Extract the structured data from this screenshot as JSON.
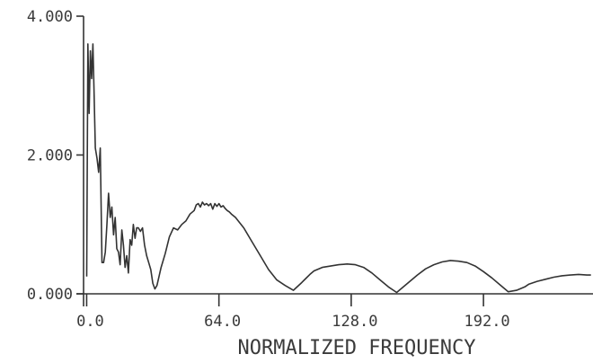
{
  "chart_data": {
    "type": "line",
    "title": "",
    "xlabel": "NORMALIZED FREQUENCY",
    "ylabel": "",
    "xlim": [
      -1.5,
      245
    ],
    "ylim": [
      0,
      4
    ],
    "x_ticks": [
      0,
      64,
      128,
      192
    ],
    "x_tick_labels": [
      "0.0",
      "64.0",
      "128.0",
      "192.0"
    ],
    "y_ticks": [
      0,
      2,
      4
    ],
    "y_tick_labels": [
      "0.000",
      "2.000",
      "4.000"
    ],
    "grid": false,
    "legend": "none",
    "series": [
      {
        "x": [
          0,
          0.6,
          1.2,
          1.8,
          2.4,
          3.0,
          3.6,
          4.2,
          5.0,
          5.8,
          6.6,
          7.4,
          8.2,
          9.0,
          9.8,
          10.6,
          11.4,
          12.2,
          13.0,
          13.8,
          14.6,
          15.4,
          16.2,
          17.0,
          17.8,
          18.6,
          19.4,
          20.2,
          21.0,
          21.8,
          22.6,
          23.4,
          24.2,
          25.0,
          26.0,
          27.0,
          28.0,
          29.0,
          30.0,
          31.0,
          32.0,
          33.0,
          34.0,
          35.0,
          36.0,
          38.0,
          40.0,
          42.0,
          44.0,
          46.0,
          48.0,
          50.0,
          52.0,
          53.0,
          54.0,
          55.0,
          56.0,
          57.0,
          58.0,
          59.0,
          60.0,
          61.0,
          62.0,
          63.0,
          64.0,
          65.0,
          66.0,
          67.0,
          68.0,
          69.0,
          70.0,
          72.0,
          76.0,
          80.0,
          84.0,
          88.0,
          92.0,
          96.0,
          100.0,
          104.0,
          106.0,
          108.0,
          110.0,
          114.0,
          118.0,
          122.0,
          126.0,
          130.0,
          134.0,
          138.0,
          142.0,
          146.0,
          150.0,
          152.0,
          156.0,
          160.0,
          164.0,
          168.0,
          172.0,
          176.0,
          180.0,
          184.0,
          188.0,
          192.0,
          196.0,
          200.0,
          204.0,
          208.0,
          212.0,
          214.0,
          218.0,
          222.0,
          226.0,
          230.0,
          234.0,
          238.0,
          242.0,
          244.0
        ],
        "y": [
          0.25,
          3.6,
          2.6,
          3.5,
          3.1,
          3.6,
          2.9,
          2.1,
          1.95,
          1.75,
          2.1,
          0.45,
          0.45,
          0.6,
          1.0,
          1.45,
          1.1,
          1.25,
          0.85,
          1.1,
          0.65,
          0.6,
          0.42,
          0.92,
          0.7,
          0.38,
          0.55,
          0.3,
          0.78,
          0.7,
          1.0,
          0.8,
          0.95,
          0.95,
          0.9,
          0.95,
          0.7,
          0.55,
          0.45,
          0.35,
          0.15,
          0.07,
          0.12,
          0.25,
          0.38,
          0.58,
          0.82,
          0.95,
          0.92,
          1.0,
          1.05,
          1.15,
          1.2,
          1.28,
          1.3,
          1.25,
          1.32,
          1.28,
          1.3,
          1.27,
          1.3,
          1.22,
          1.3,
          1.26,
          1.3,
          1.25,
          1.27,
          1.23,
          1.2,
          1.18,
          1.15,
          1.1,
          0.95,
          0.75,
          0.55,
          0.35,
          0.2,
          0.12,
          0.05,
          0.16,
          0.22,
          0.28,
          0.33,
          0.38,
          0.4,
          0.42,
          0.43,
          0.42,
          0.38,
          0.3,
          0.2,
          0.1,
          0.02,
          0.07,
          0.17,
          0.27,
          0.36,
          0.42,
          0.46,
          0.48,
          0.47,
          0.45,
          0.4,
          0.32,
          0.23,
          0.13,
          0.03,
          0.05,
          0.1,
          0.14,
          0.18,
          0.21,
          0.24,
          0.26,
          0.27,
          0.28,
          0.27,
          0.27
        ]
      }
    ]
  }
}
